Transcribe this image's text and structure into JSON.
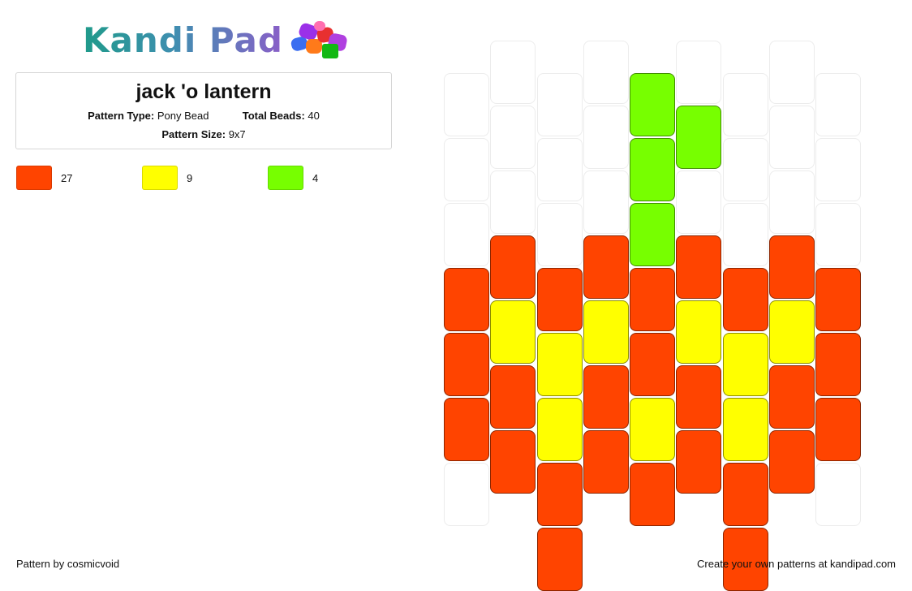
{
  "brand": {
    "name": "Kandi Pad"
  },
  "pattern": {
    "title": "jack 'o lantern",
    "type_label": "Pattern Type:",
    "type_value": "Pony Bead",
    "total_label": "Total Beads:",
    "total_value": "40",
    "size_label": "Pattern Size:",
    "size_value": "9x7"
  },
  "legend": [
    {
      "color": "#ff4400",
      "count": "27"
    },
    {
      "color": "#ffff00",
      "count": "9"
    },
    {
      "color": "#77ff00",
      "count": "4"
    }
  ],
  "bead_grid": {
    "columns": 9,
    "colors": {
      "O": "#ff4400",
      "Y": "#ffff00",
      "G": "#77ff00"
    },
    "column_beads": [
      [
        "",
        "",
        "",
        "O",
        "O",
        "O",
        ""
      ],
      [
        "",
        "",
        "",
        "O",
        "Y",
        "O",
        "O"
      ],
      [
        "",
        "",
        "",
        "O",
        "Y",
        "Y",
        "O",
        "O"
      ],
      [
        "",
        "",
        "",
        "O",
        "Y",
        "O",
        "O"
      ],
      [
        "G",
        "G",
        "G",
        "O",
        "O",
        "Y",
        "O"
      ],
      [
        "",
        "G",
        "",
        "O",
        "Y",
        "O",
        "O"
      ],
      [
        "",
        "",
        "",
        "O",
        "Y",
        "Y",
        "O",
        "O"
      ],
      [
        "",
        "",
        "",
        "O",
        "Y",
        "O",
        "O"
      ],
      [
        "",
        "",
        "",
        "O",
        "O",
        "O",
        ""
      ]
    ]
  },
  "footer": {
    "credit": "Pattern by cosmicvoid",
    "promo": "Create your own patterns at kandipad.com"
  }
}
